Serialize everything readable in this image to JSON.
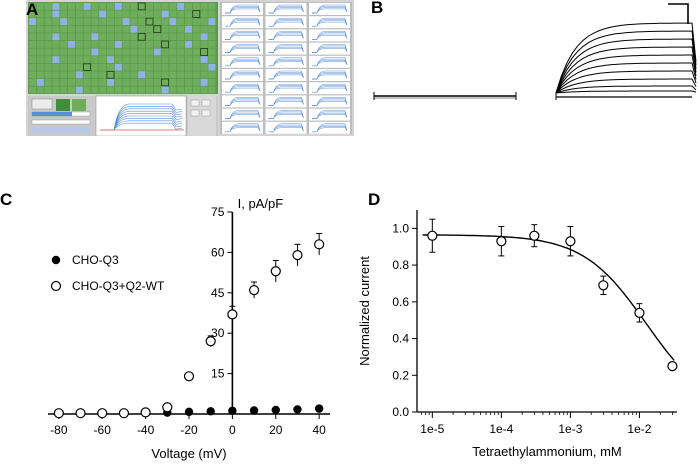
{
  "panels": {
    "a": {
      "letter": "A"
    },
    "b": {
      "letter": "B"
    },
    "c": {
      "letter": "C"
    },
    "d": {
      "letter": "D"
    }
  },
  "colors": {
    "plate_green": "#6fae5c",
    "well_blue": "#8fb3e6",
    "software_grey": "#cfcfcf",
    "trace_blue": "#5a8fd8",
    "fit_line": "#000000"
  },
  "chart_data": [
    {
      "panel": "C",
      "type": "scatter",
      "title": "",
      "xlabel": "Voltage (mV)",
      "ylabel": "I, pA/pF",
      "xlim": [
        -85,
        45
      ],
      "ylim": [
        0,
        75
      ],
      "xticks": [
        -80,
        -60,
        -40,
        -20,
        0,
        20,
        40
      ],
      "yticks": [
        15,
        30,
        45,
        60,
        75
      ],
      "legend_position": "upper-left",
      "series": [
        {
          "name": "CHO-Q3",
          "marker": "filled-circle",
          "x": [
            -80,
            -70,
            -60,
            -50,
            -40,
            -30,
            -20,
            -10,
            0,
            10,
            20,
            30,
            40
          ],
          "y": [
            0.3,
            0.3,
            0.3,
            0.3,
            0.3,
            0.5,
            0.8,
            1.0,
            1.2,
            1.3,
            1.5,
            1.7,
            2.0
          ],
          "err": [
            0,
            0,
            0,
            0,
            0,
            0,
            0,
            0,
            0,
            0,
            0,
            0,
            0
          ]
        },
        {
          "name": "CHO-Q3+Q2-WT",
          "marker": "open-circle",
          "x": [
            -80,
            -70,
            -60,
            -50,
            -40,
            -30,
            -20,
            -10,
            0,
            10,
            20,
            30,
            40
          ],
          "y": [
            0.3,
            0.3,
            0.3,
            0.3,
            0.6,
            2.5,
            14,
            27,
            37,
            46,
            53,
            59,
            63
          ],
          "err": [
            0,
            0,
            0,
            0,
            0,
            0,
            0,
            2,
            3,
            3,
            4,
            4,
            4
          ]
        }
      ]
    },
    {
      "panel": "D",
      "type": "scatter",
      "title": "",
      "xlabel": "Tetraethylammonium, mM",
      "ylabel": "Normalized current",
      "xscale": "log",
      "xlim": [
        6e-06,
        0.035
      ],
      "ylim": [
        0,
        1.1
      ],
      "xticks": [
        1e-05,
        0.0001,
        0.001,
        0.01
      ],
      "xtick_labels": [
        "1e-5",
        "1e-4",
        "1e-3",
        "1e-2"
      ],
      "yticks": [
        0.0,
        0.2,
        0.4,
        0.6,
        0.8,
        1.0
      ],
      "ytick_labels": [
        "0.0",
        "0.2",
        "0.4",
        "0.6",
        "0.8",
        "1.0"
      ],
      "points": {
        "x": [
          1e-05,
          0.0001,
          0.0003,
          0.001,
          0.003,
          0.01,
          0.03
        ],
        "y": [
          0.96,
          0.93,
          0.96,
          0.93,
          0.69,
          0.54,
          0.25
        ],
        "err": [
          0.09,
          0.08,
          0.06,
          0.08,
          0.05,
          0.05,
          0.0
        ]
      },
      "fit": {
        "top": 0.965,
        "ic50": 0.0125,
        "hill": 0.95
      }
    }
  ]
}
